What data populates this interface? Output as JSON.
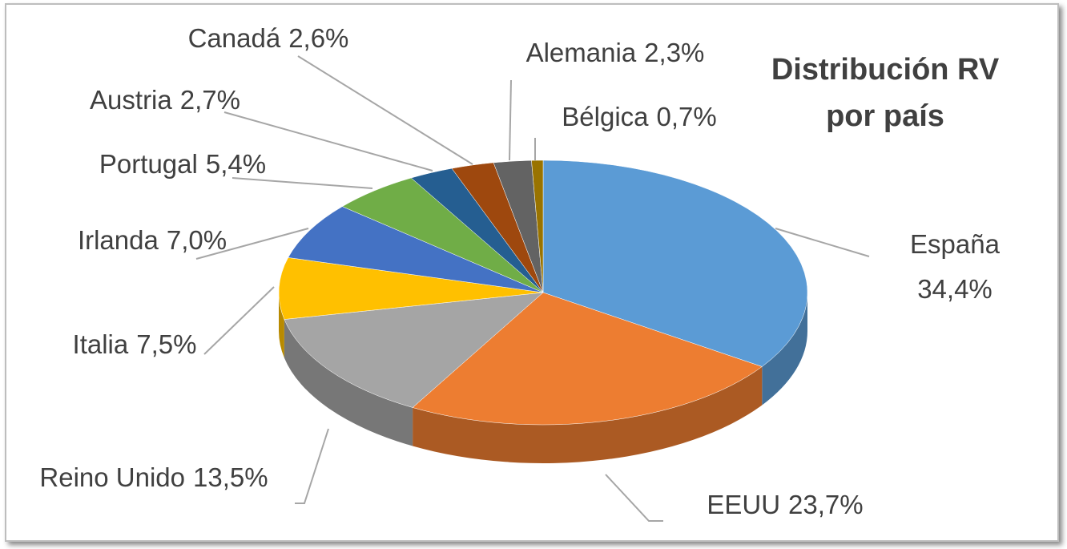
{
  "chart_data": {
    "type": "pie",
    "title": "Distribución RV por país",
    "categories": [
      "España",
      "EEUU",
      "Reino Unido",
      "Italia",
      "Irlanda",
      "Portugal",
      "Austria",
      "Canadá",
      "Alemania",
      "Bélgica"
    ],
    "values": [
      34.4,
      23.7,
      13.5,
      7.5,
      7.0,
      5.4,
      2.7,
      2.6,
      2.3,
      0.7
    ],
    "value_labels": [
      "34,4%",
      "23,7%",
      "13,5%",
      "7,5%",
      "7,0%",
      "5,4%",
      "2,7%",
      "2,6%",
      "2,3%",
      "0,7%"
    ],
    "colors": [
      "#5b9bd5",
      "#ed7d31",
      "#a5a5a5",
      "#ffc000",
      "#4472c4",
      "#70ad47",
      "#255e91",
      "#9e480e",
      "#636363",
      "#997300"
    ]
  }
}
